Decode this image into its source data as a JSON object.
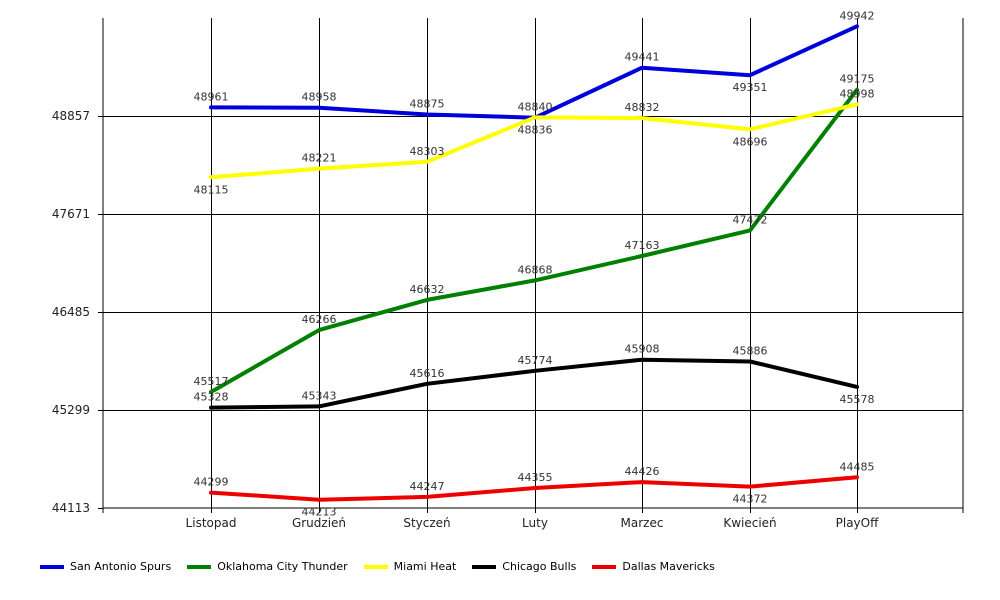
{
  "chart_data": {
    "type": "line",
    "categories": [
      "Listopad",
      "Grudzień",
      "Styczeń",
      "Luty",
      "Marzec",
      "Kwiecień",
      "PlayOff"
    ],
    "y_ticks": [
      "44113",
      "45299",
      "46485",
      "47671",
      "48857"
    ],
    "ylim": [
      44113,
      50043
    ],
    "grid": true,
    "legend_position": "bottom-left",
    "series": [
      {
        "name": "San Antonio Spurs",
        "color": "#0000dd",
        "values": [
          48961,
          48958,
          48875,
          48836,
          49441,
          49351,
          49942
        ]
      },
      {
        "name": "Oklahoma City Thunder",
        "color": "#008000",
        "values": [
          45517,
          46266,
          46632,
          46868,
          47163,
          47472,
          49175
        ]
      },
      {
        "name": "Miami Heat",
        "color": "#ffff00",
        "values": [
          48115,
          48221,
          48303,
          48840,
          48832,
          48696,
          48998
        ]
      },
      {
        "name": "Chicago Bulls",
        "color": "#000000",
        "values": [
          45328,
          45343,
          45616,
          45774,
          45908,
          45886,
          45578
        ]
      },
      {
        "name": "Dallas Mavericks",
        "color": "#ee0000",
        "values": [
          44299,
          44213,
          44247,
          44355,
          44426,
          44372,
          44485
        ]
      }
    ]
  }
}
